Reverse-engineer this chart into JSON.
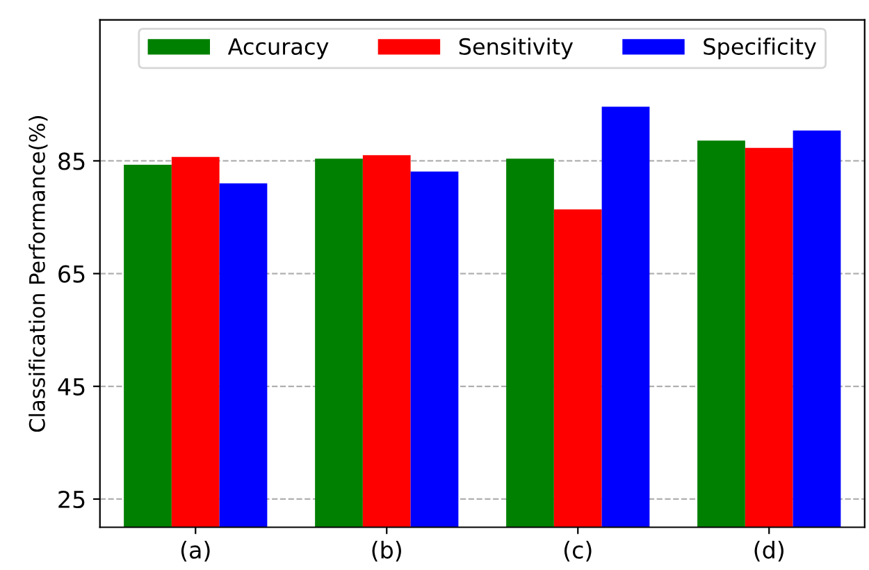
{
  "chart_data": {
    "type": "bar",
    "ylabel": "Classification Performance(%)",
    "categories": [
      "(a)",
      "(b)",
      "(c)",
      "(d)"
    ],
    "series": [
      {
        "name": "Accuracy",
        "color": "#008000",
        "values": [
          84.3,
          85.4,
          85.4,
          88.6
        ]
      },
      {
        "name": "Sensitivity",
        "color": "#ff0000",
        "values": [
          85.7,
          86.0,
          76.4,
          87.3
        ]
      },
      {
        "name": "Specificity",
        "color": "#0000ff",
        "values": [
          81.0,
          83.1,
          94.6,
          90.4
        ]
      }
    ],
    "ylim": [
      20,
      110
    ],
    "yticks": [
      25,
      45,
      65,
      85
    ],
    "grid": "y",
    "legend": "top"
  }
}
